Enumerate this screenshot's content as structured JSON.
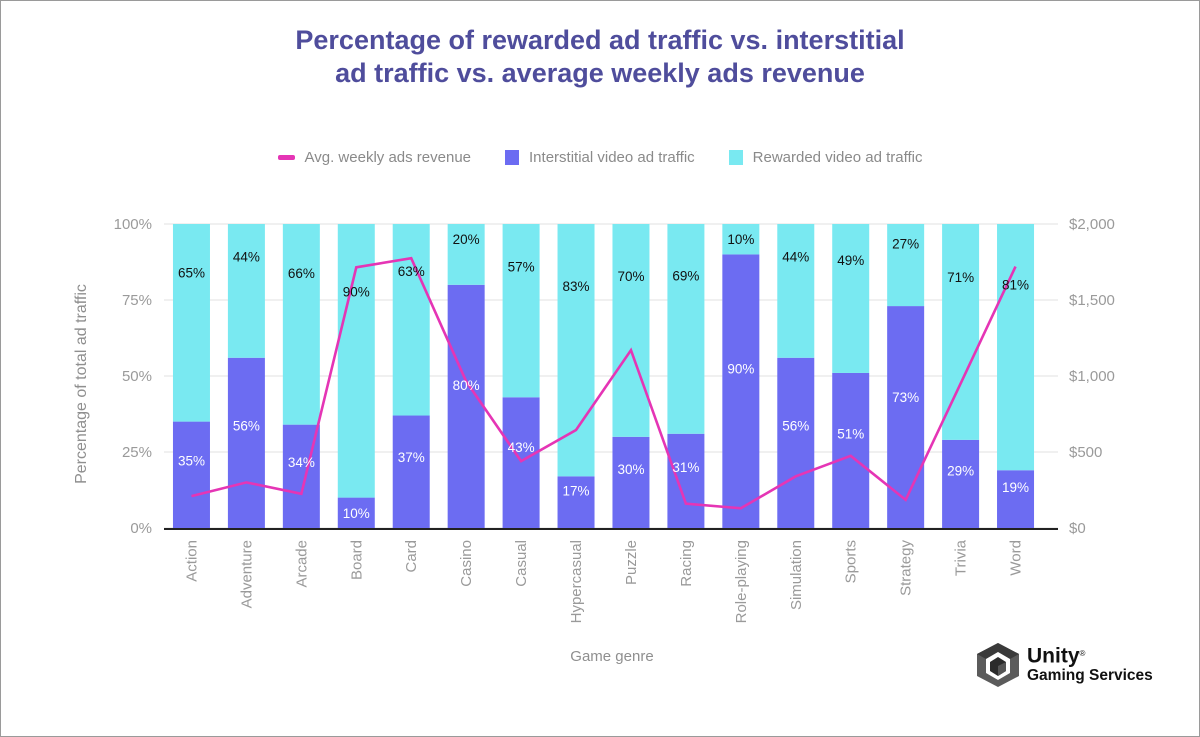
{
  "chart_data": {
    "type": "bar",
    "stacked": true,
    "title": [
      "Percentage of rewarded ad traffic vs. interstitial",
      "ad traffic vs. average weekly ads revenue"
    ],
    "xlabel": "Game genre",
    "ylabel": "Percentage of total ad traffic",
    "ylim": [
      0,
      100
    ],
    "y_ticks": [
      "0%",
      "25%",
      "50%",
      "75%",
      "100%"
    ],
    "y2lim": [
      0,
      2000
    ],
    "y2_ticks": [
      "$0",
      "$500",
      "$1,000",
      "$1,500",
      "$2,000"
    ],
    "grid": true,
    "legend_position": "top-center",
    "categories": [
      "Action",
      "Adventure",
      "Arcade",
      "Board",
      "Card",
      "Casino",
      "Casual",
      "Hypercasual",
      "Puzzle",
      "Racing",
      "Role-playing",
      "Simulation",
      "Sports",
      "Strategy",
      "Trivia",
      "Word"
    ],
    "series": [
      {
        "name": "Interstitial video ad traffic",
        "type": "bar",
        "axis": "left",
        "color": "#6c6cf2",
        "label_color": "#ffffff",
        "values": [
          35,
          56,
          34,
          10,
          37,
          80,
          43,
          17,
          30,
          31,
          90,
          56,
          51,
          73,
          29,
          19
        ]
      },
      {
        "name": "Rewarded video ad traffic",
        "type": "bar",
        "axis": "left",
        "color": "#79e9f1",
        "label_color": "#111111",
        "values": [
          65,
          44,
          66,
          90,
          63,
          20,
          57,
          83,
          70,
          69,
          10,
          44,
          49,
          27,
          71,
          81
        ]
      },
      {
        "name": "Avg. weekly ads revenue",
        "type": "line",
        "axis": "right",
        "color": "#e535b5",
        "values": [
          210,
          300,
          225,
          1715,
          1775,
          965,
          440,
          645,
          1170,
          160,
          130,
          340,
          475,
          185,
          950,
          1720
        ]
      }
    ],
    "legend": [
      {
        "name": "Avg. weekly ads revenue",
        "kind": "line",
        "color": "#e535b5"
      },
      {
        "name": "Interstitial video ad traffic",
        "kind": "box",
        "color": "#6c6cf2"
      },
      {
        "name": "Rewarded video ad traffic",
        "kind": "box",
        "color": "#79e9f1"
      }
    ]
  },
  "branding": {
    "logo_icon": "unity-cube-icon",
    "name": "Unity",
    "registered_mark": "®",
    "subtitle": "Gaming Services"
  }
}
